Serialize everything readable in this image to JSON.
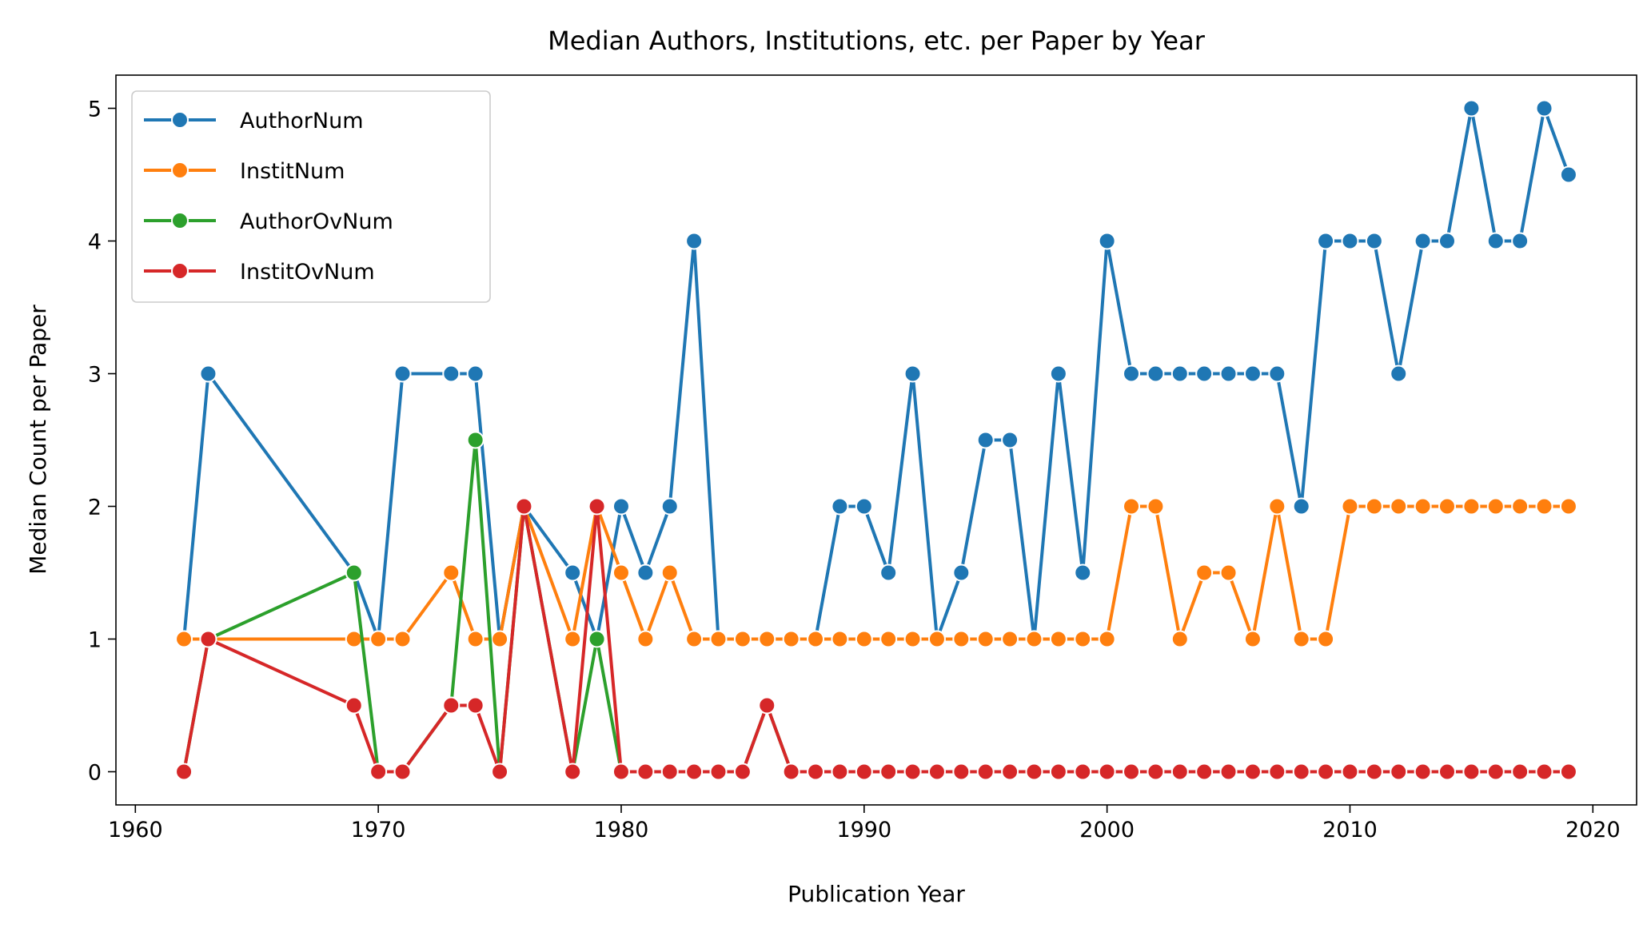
{
  "chart_data": {
    "type": "line",
    "title": "Median Authors, Institutions, etc. per Paper by Year",
    "xlabel": "Publication Year",
    "ylabel": "Median Count per Paper",
    "xlim": [
      1959.2,
      2021.8
    ],
    "ylim": [
      -0.25,
      5.25
    ],
    "xticks": [
      1960,
      1970,
      1980,
      1990,
      2000,
      2010,
      2020
    ],
    "yticks": [
      0,
      1,
      2,
      3,
      4,
      5
    ],
    "legend_position": "top-left",
    "grid": false,
    "series": [
      {
        "name": "AuthorNum",
        "color": "#1f77b4",
        "x": [
          1962,
          1963,
          1969,
          1970,
          1971,
          1973,
          1974,
          1975,
          1976,
          1978,
          1979,
          1980,
          1981,
          1982,
          1983,
          1984,
          1985,
          1986,
          1987,
          1988,
          1989,
          1990,
          1991,
          1992,
          1993,
          1994,
          1995,
          1996,
          1997,
          1998,
          1999,
          2000,
          2001,
          2002,
          2003,
          2004,
          2005,
          2006,
          2007,
          2008,
          2009,
          2010,
          2011,
          2012,
          2013,
          2014,
          2015,
          2016,
          2017,
          2018,
          2019
        ],
        "values": [
          1,
          3,
          1.5,
          1,
          3,
          3,
          3,
          1,
          2,
          1.5,
          1,
          2,
          1.5,
          2,
          4,
          1,
          1,
          1,
          1,
          1,
          2,
          2,
          1.5,
          3,
          1,
          1.5,
          2.5,
          2.5,
          1,
          3,
          1.5,
          4,
          3,
          3,
          3,
          3,
          3,
          3,
          3,
          2,
          4,
          4,
          4,
          3,
          4,
          4,
          5,
          4,
          4,
          5,
          4.5
        ]
      },
      {
        "name": "InstitNum",
        "color": "#ff7f0e",
        "x": [
          1962,
          1963,
          1969,
          1970,
          1971,
          1973,
          1974,
          1975,
          1976,
          1978,
          1979,
          1980,
          1981,
          1982,
          1983,
          1984,
          1985,
          1986,
          1987,
          1988,
          1989,
          1990,
          1991,
          1992,
          1993,
          1994,
          1995,
          1996,
          1997,
          1998,
          1999,
          2000,
          2001,
          2002,
          2003,
          2004,
          2005,
          2006,
          2007,
          2008,
          2009,
          2010,
          2011,
          2012,
          2013,
          2014,
          2015,
          2016,
          2017,
          2018,
          2019
        ],
        "values": [
          1,
          1,
          1,
          1,
          1,
          1.5,
          1,
          1,
          2,
          1,
          2,
          1.5,
          1,
          1.5,
          1,
          1,
          1,
          1,
          1,
          1,
          1,
          1,
          1,
          1,
          1,
          1,
          1,
          1,
          1,
          1,
          1,
          1,
          2,
          2,
          1,
          1.5,
          1.5,
          1,
          2,
          1,
          1,
          2,
          2,
          2,
          2,
          2,
          2,
          2,
          2,
          2,
          2
        ]
      },
      {
        "name": "AuthorOvNum",
        "color": "#2ca02c",
        "x": [
          1962,
          1963,
          1969,
          1970,
          1971,
          1973,
          1974,
          1975,
          1976,
          1978,
          1979,
          1980,
          1981,
          1982,
          1983,
          1984,
          1985,
          1986,
          1987,
          1988,
          1989,
          1990,
          1991,
          1992,
          1993,
          1994,
          1995,
          1996,
          1997,
          1998,
          1999,
          2000,
          2001,
          2002,
          2003,
          2004,
          2005,
          2006,
          2007,
          2008,
          2009,
          2010,
          2011,
          2012,
          2013,
          2014,
          2015,
          2016,
          2017,
          2018,
          2019
        ],
        "values": [
          0,
          1,
          1.5,
          0,
          0,
          0.5,
          2.5,
          0,
          2,
          0,
          1,
          0,
          0,
          0,
          0,
          0,
          0,
          0.5,
          0,
          0,
          0,
          0,
          0,
          0,
          0,
          0,
          0,
          0,
          0,
          0,
          0,
          0,
          0,
          0,
          0,
          0,
          0,
          0,
          0,
          0,
          0,
          0,
          0,
          0,
          0,
          0,
          0,
          0,
          0,
          0,
          0
        ]
      },
      {
        "name": "InstitOvNum",
        "color": "#d62728",
        "x": [
          1962,
          1963,
          1969,
          1970,
          1971,
          1973,
          1974,
          1975,
          1976,
          1978,
          1979,
          1980,
          1981,
          1982,
          1983,
          1984,
          1985,
          1986,
          1987,
          1988,
          1989,
          1990,
          1991,
          1992,
          1993,
          1994,
          1995,
          1996,
          1997,
          1998,
          1999,
          2000,
          2001,
          2002,
          2003,
          2004,
          2005,
          2006,
          2007,
          2008,
          2009,
          2010,
          2011,
          2012,
          2013,
          2014,
          2015,
          2016,
          2017,
          2018,
          2019
        ],
        "values": [
          0,
          1,
          0.5,
          0,
          0,
          0.5,
          0.5,
          0,
          2,
          0,
          2,
          0,
          0,
          0,
          0,
          0,
          0,
          0.5,
          0,
          0,
          0,
          0,
          0,
          0,
          0,
          0,
          0,
          0,
          0,
          0,
          0,
          0,
          0,
          0,
          0,
          0,
          0,
          0,
          0,
          0,
          0,
          0,
          0,
          0,
          0,
          0,
          0,
          0,
          0,
          0,
          0
        ]
      }
    ]
  }
}
